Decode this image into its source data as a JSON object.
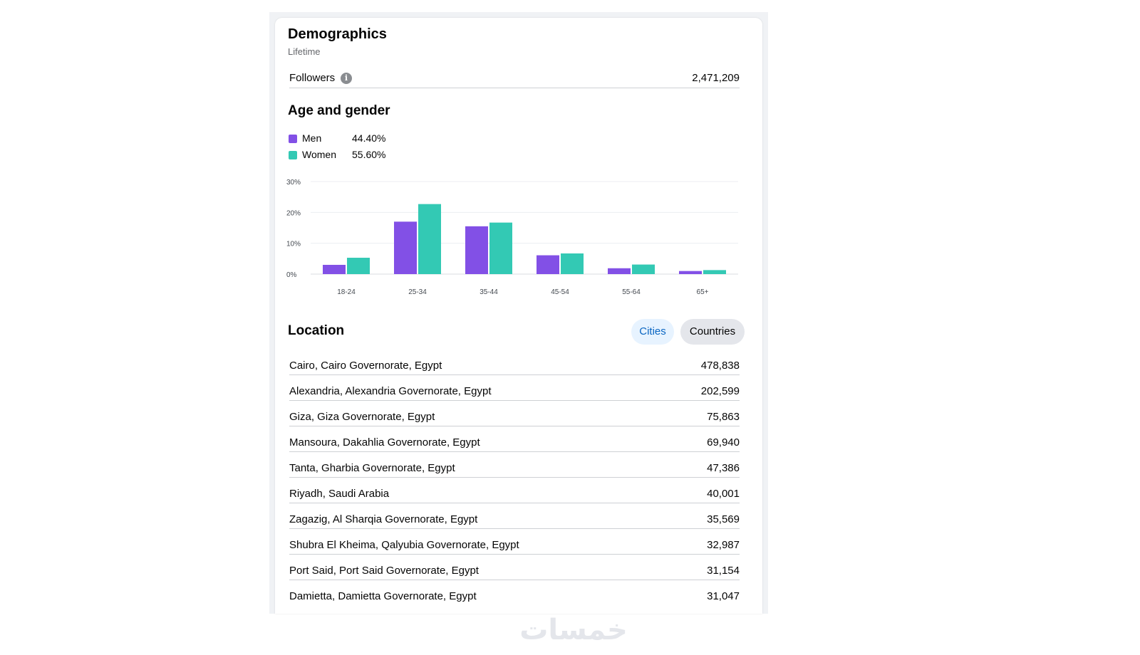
{
  "demographics": {
    "title": "Demographics",
    "period": "Lifetime",
    "followers_label": "Followers",
    "followers_value": "2,471,209"
  },
  "age_gender": {
    "title": "Age and gender",
    "legend": [
      {
        "label": "Men",
        "value": "44.40%",
        "color": "#8250e6"
      },
      {
        "label": "Women",
        "value": "55.60%",
        "color": "#33c9b4"
      }
    ]
  },
  "chart_data": {
    "type": "bar",
    "title": "Age and gender",
    "categories": [
      "18-24",
      "25-34",
      "35-44",
      "45-54",
      "55-64",
      "65+"
    ],
    "series": [
      {
        "name": "Men",
        "color": "#8250e6",
        "values": [
          3.0,
          17.0,
          15.5,
          6.1,
          1.9,
          1.0
        ]
      },
      {
        "name": "Women",
        "color": "#33c9b4",
        "values": [
          5.3,
          22.7,
          16.7,
          6.7,
          3.1,
          1.3
        ]
      }
    ],
    "y_ticks": [
      "0%",
      "10%",
      "20%",
      "30%"
    ],
    "ylim": [
      0,
      30
    ],
    "xlabel": "",
    "ylabel": ""
  },
  "location": {
    "title": "Location",
    "tabs": [
      {
        "label": "Cities",
        "active": true
      },
      {
        "label": "Countries",
        "active": false
      }
    ],
    "rows": [
      {
        "name": "Cairo, Cairo Governorate, Egypt",
        "value": "478,838"
      },
      {
        "name": "Alexandria, Alexandria Governorate, Egypt",
        "value": "202,599"
      },
      {
        "name": "Giza, Giza Governorate, Egypt",
        "value": "75,863"
      },
      {
        "name": "Mansoura, Dakahlia Governorate, Egypt",
        "value": "69,940"
      },
      {
        "name": "Tanta, Gharbia Governorate, Egypt",
        "value": "47,386"
      },
      {
        "name": "Riyadh, Saudi Arabia",
        "value": "40,001"
      },
      {
        "name": "Zagazig, Al Sharqia Governorate, Egypt",
        "value": "35,569"
      },
      {
        "name": "Shubra El Kheima, Qalyubia Governorate, Egypt",
        "value": "32,987"
      },
      {
        "name": "Port Said, Port Said Governorate, Egypt",
        "value": "31,154"
      },
      {
        "name": "Damietta, Damietta Governorate, Egypt",
        "value": "31,047"
      }
    ]
  },
  "watermark": {
    "text": "خمسات"
  }
}
